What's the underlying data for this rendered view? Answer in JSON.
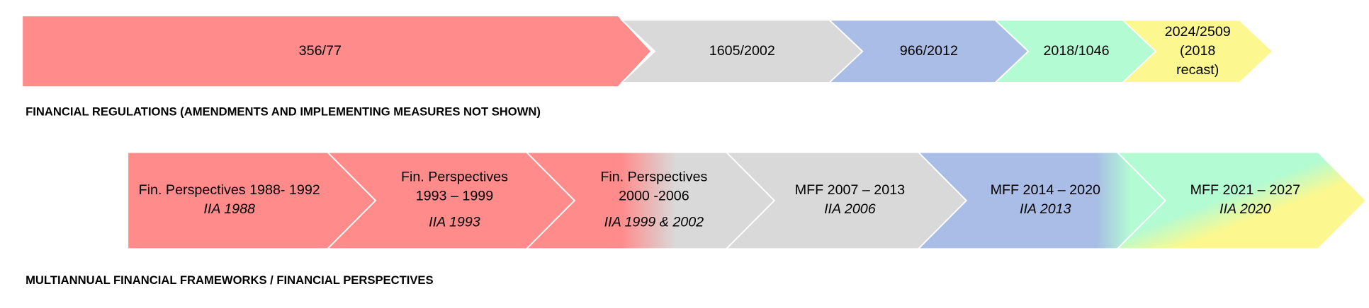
{
  "regulations": {
    "label": "FINANCIAL REGULATIONS (AMENDMENTS AND IMPLEMENTING MEASURES NOT SHOWN)",
    "items": [
      {
        "lines": [
          "356/77"
        ]
      },
      {
        "lines": [
          "1605/2002"
        ]
      },
      {
        "lines": [
          "966/2012"
        ]
      },
      {
        "lines": [
          "2018/1046"
        ]
      },
      {
        "lines": [
          "2024/2509",
          "(2018",
          "recast)"
        ]
      }
    ]
  },
  "frameworks": {
    "label": "MULTIANNUAL FINANCIAL FRAMEWORKS / FINANCIAL PERSPECTIVES",
    "items": [
      {
        "lines": [
          "Fin. Perspectives 1988- 1992"
        ],
        "italic": [
          "IIA 1988"
        ]
      },
      {
        "lines": [
          "Fin. Perspectives",
          "1993 – 1999"
        ],
        "italic": [
          "IIA 1993"
        ]
      },
      {
        "lines": [
          "Fin. Perspectives",
          "2000 -2006"
        ],
        "italic": [
          "IIA 1999 & 2002"
        ]
      },
      {
        "lines": [
          "MFF 2007 – 2013"
        ],
        "italic": [
          "IIA 2006"
        ]
      },
      {
        "lines": [
          "MFF 2014 – 2020"
        ],
        "italic": [
          "IIA 2013"
        ]
      },
      {
        "lines": [
          "MFF 2021 – 2027"
        ],
        "italic": [
          "IIA 2020"
        ]
      }
    ]
  }
}
